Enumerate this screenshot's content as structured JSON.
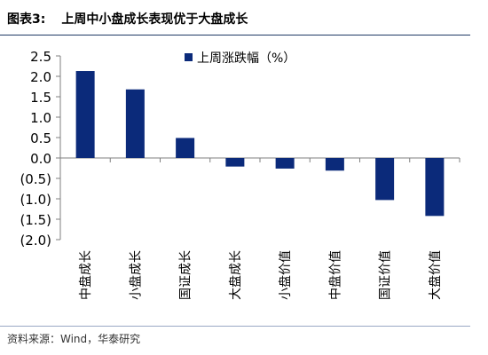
{
  "figure": {
    "number_label": "图表3:",
    "title": "上周中小盘成长表现优于大盘成长",
    "source": "资料来源：Wind，华泰研究"
  },
  "chart_data": {
    "type": "bar",
    "categories": [
      "中盘成长",
      "小盘成长",
      "国证成长",
      "大盘成长",
      "小盘价值",
      "中盘价值",
      "国证价值",
      "大盘价值"
    ],
    "series": [
      {
        "name": "上周涨跌幅（%）",
        "values": [
          2.13,
          1.68,
          0.49,
          -0.21,
          -0.26,
          -0.31,
          -1.03,
          -1.42
        ]
      }
    ],
    "ylim": [
      -2.0,
      2.5
    ],
    "yticks": [
      2.5,
      2.0,
      1.5,
      1.0,
      0.5,
      0.0,
      -0.5,
      -1.0,
      -1.5,
      -2.0
    ],
    "ytick_labels": [
      "2.5",
      "2.0",
      "1.5",
      "1.0",
      "0.5",
      "0.0",
      "(0.5)",
      "(1.0)",
      "(1.5)",
      "(2.0)"
    ],
    "legend_position": "top-center",
    "grid": false,
    "colors": {
      "bar": "#0b2a7a",
      "axis": "#7f7f7f"
    }
  }
}
